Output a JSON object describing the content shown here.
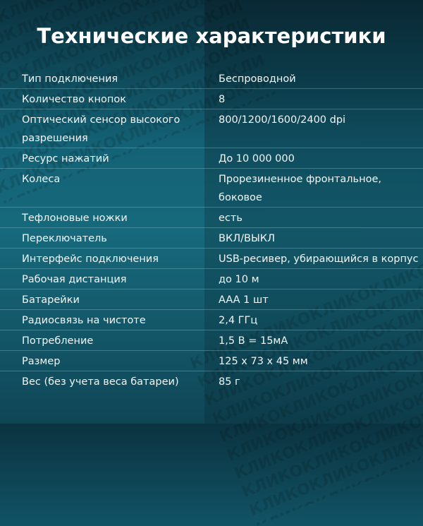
{
  "title": "Технические характеристики",
  "watermark": "КЛИКО",
  "specs": [
    {
      "label": "Тип подключения",
      "value": "Беспроводной"
    },
    {
      "label": "Количество кнопок",
      "value": "8"
    },
    {
      "label": "Оптический сенсор высокого разрешения",
      "value": "800/1200/1600/2400 dpi"
    },
    {
      "label": "Ресурс нажатий",
      "value": "До 10 000 000"
    },
    {
      "label": "Колеса",
      "value": "Прорезиненное фронтальное, боковое"
    },
    {
      "label": "Тефлоновые ножки",
      "value": "есть"
    },
    {
      "label": "Переключатель",
      "value": "ВКЛ/ВЫКЛ"
    },
    {
      "label": "Интерфейс подключения",
      "value": "USB-ресивер, убирающийся в корпус"
    },
    {
      "label": "Рабочая дистанция",
      "value": "до 10 м"
    },
    {
      "label": "Батарейки",
      "value": "AAA 1 шт"
    },
    {
      "label": "Радиосвязь на чистоте",
      "value": "2,4 ГГц"
    },
    {
      "label": "Потребление",
      "value": "1,5 В = 15мА"
    },
    {
      "label": "Размер",
      "value": "125 х 73 х 45 мм"
    },
    {
      "label": "Вес (без учета веса батареи)",
      "value": "85 г"
    }
  ]
}
